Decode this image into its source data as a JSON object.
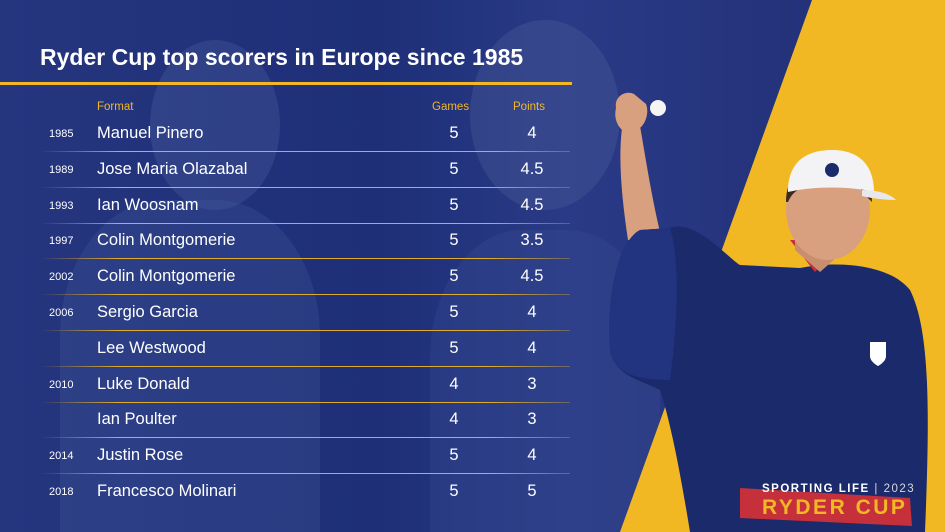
{
  "title": "Ryder Cup top scorers in Europe since 1985",
  "columns": {
    "format": "Format",
    "games": "Games",
    "points": "Points"
  },
  "rows": [
    {
      "year": "1985",
      "name": "Manuel Pinero",
      "games": "5",
      "points": "4"
    },
    {
      "year": "1989",
      "name": "Jose Maria Olazabal",
      "games": "5",
      "points": "4.5"
    },
    {
      "year": "1993",
      "name": "Ian Woosnam",
      "games": "5",
      "points": "4.5"
    },
    {
      "year": "1997",
      "name": "Colin Montgomerie",
      "games": "5",
      "points": "3.5"
    },
    {
      "year": "2002",
      "name": "Colin Montgomerie",
      "games": "5",
      "points": "4.5"
    },
    {
      "year": "2006",
      "name": "Sergio Garcia",
      "games": "5",
      "points": "4"
    },
    {
      "year": "",
      "name": "Lee Westwood",
      "games": "5",
      "points": "4"
    },
    {
      "year": "2010",
      "name": "Luke Donald",
      "games": "4",
      "points": "3"
    },
    {
      "year": "",
      "name": "Ian Poulter",
      "games": "4",
      "points": "3"
    },
    {
      "year": "2014",
      "name": "Justin Rose",
      "games": "5",
      "points": "4"
    },
    {
      "year": "2018",
      "name": "Francesco Molinari",
      "games": "5",
      "points": "5"
    }
  ],
  "brand": {
    "top": "SPORTING LIFE",
    "year": "2023",
    "bottom": "RYDER CUP"
  },
  "colors": {
    "navy": "#1e2f78",
    "gold": "#f2b824",
    "white": "#ffffff"
  }
}
